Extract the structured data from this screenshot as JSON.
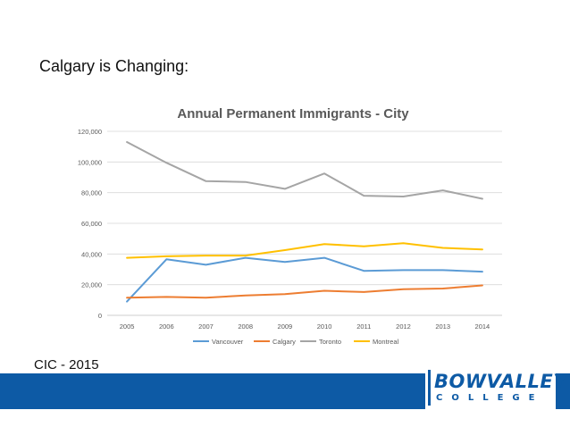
{
  "slide": {
    "heading": "Calgary is Changing:",
    "source": "CIC - 2015"
  },
  "logo": {
    "word": "BOWVALLEY",
    "sub": "COLLEGE",
    "color": "#0d5aa5"
  },
  "band_color": "#0d5aa5",
  "chart_data": {
    "type": "line",
    "title": "Annual Permanent Immigrants - City",
    "xlabel": "",
    "ylabel": "",
    "categories": [
      "2005",
      "2006",
      "2007",
      "2008",
      "2009",
      "2010",
      "2011",
      "2012",
      "2013",
      "2014"
    ],
    "ylim": [
      0,
      120000
    ],
    "yticks": [
      0,
      20000,
      40000,
      60000,
      80000,
      100000,
      120000
    ],
    "ytick_labels": [
      "0",
      "20,000",
      "40,000",
      "60,000",
      "80,000",
      "100,000",
      "120,000"
    ],
    "grid": true,
    "legend_position": "bottom",
    "series": [
      {
        "name": "Vancouver",
        "color": "#5b9bd5",
        "values": [
          9000,
          36500,
          33000,
          37500,
          34800,
          37500,
          29000,
          29500,
          29500,
          28500
        ]
      },
      {
        "name": "Calgary",
        "color": "#ed7d31",
        "values": [
          11500,
          12000,
          11500,
          13000,
          13800,
          16000,
          15200,
          17000,
          17500,
          19500
        ]
      },
      {
        "name": "Toronto",
        "color": "#a5a5a5",
        "values": [
          113000,
          99500,
          87500,
          87000,
          82500,
          92500,
          78000,
          77500,
          81500,
          76000
        ]
      },
      {
        "name": "Montreal",
        "color": "#ffc000",
        "values": [
          37500,
          38500,
          39000,
          39000,
          42500,
          46500,
          45000,
          47000,
          44000,
          43000
        ]
      }
    ]
  }
}
